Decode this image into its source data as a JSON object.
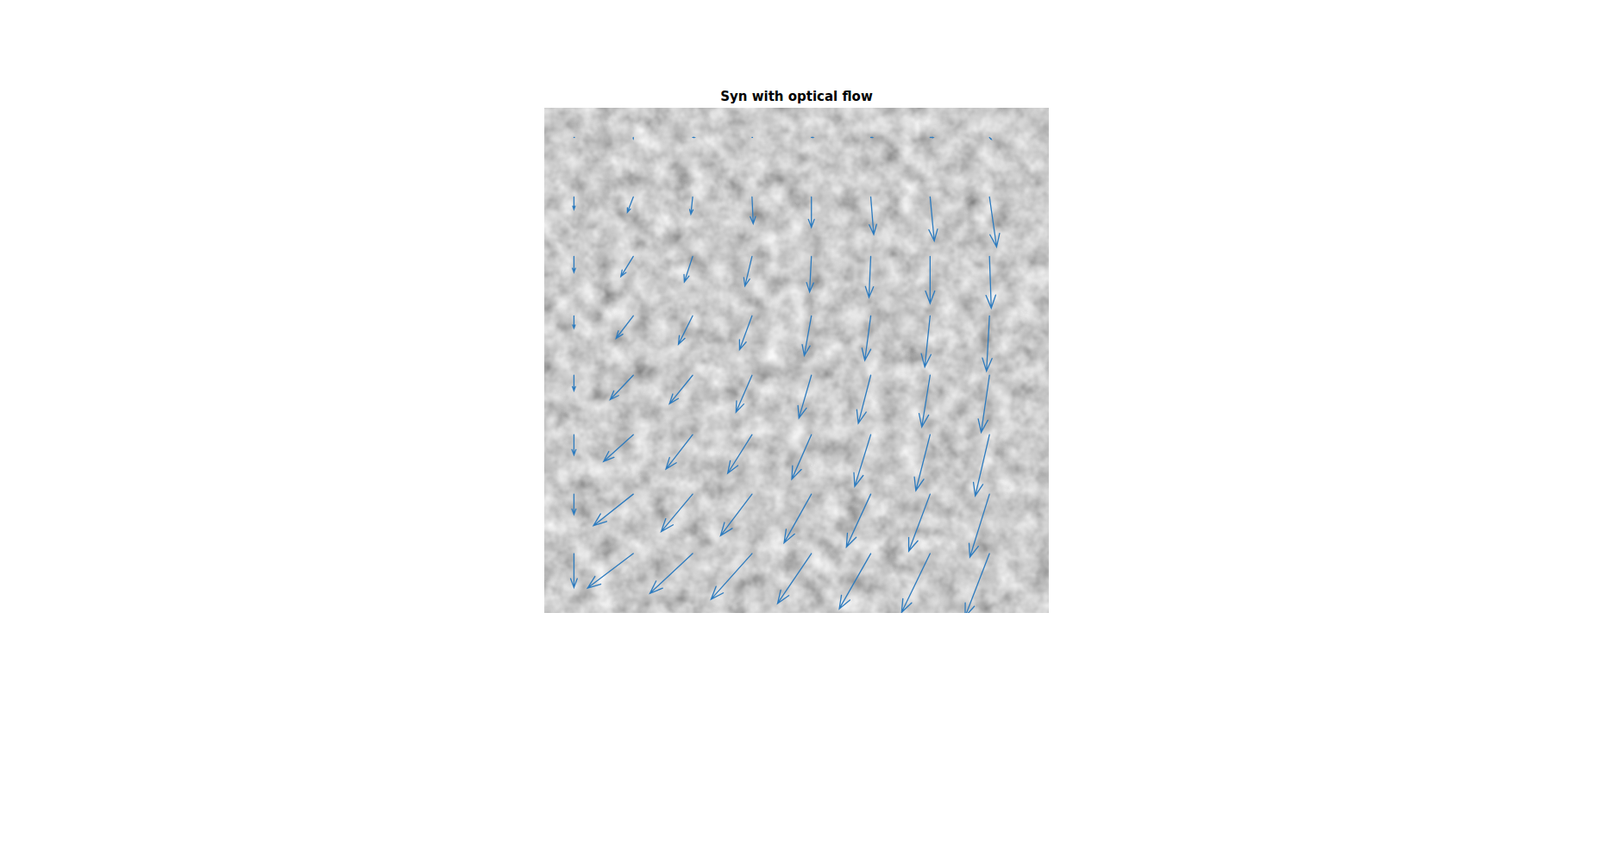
{
  "chart_data": {
    "type": "quiver",
    "title": "Syn with optical flow",
    "xlim": [
      0,
      85
    ],
    "ylim": [
      0,
      85
    ],
    "tick_labels": false,
    "color": "#2c7bbf",
    "x": [
      5,
      15,
      25,
      35,
      45,
      55,
      65,
      75,
      5,
      15,
      25,
      35,
      45,
      55,
      65,
      75,
      5,
      15,
      25,
      35,
      45,
      55,
      65,
      75,
      5,
      15,
      25,
      35,
      45,
      55,
      65,
      75,
      5,
      15,
      25,
      35,
      45,
      55,
      65,
      75,
      5,
      15,
      25,
      35,
      45,
      55,
      65,
      75,
      5,
      15,
      25,
      35,
      45,
      55,
      65,
      75,
      5,
      15,
      25,
      35,
      45,
      55,
      65,
      75
    ],
    "y": [
      5,
      5,
      5,
      5,
      5,
      5,
      5,
      5,
      15,
      15,
      15,
      15,
      15,
      15,
      15,
      15,
      25,
      25,
      25,
      25,
      25,
      25,
      25,
      25,
      35,
      35,
      35,
      35,
      35,
      35,
      35,
      35,
      45,
      45,
      45,
      45,
      45,
      45,
      45,
      45,
      55,
      55,
      55,
      55,
      55,
      55,
      55,
      55,
      65,
      65,
      65,
      65,
      65,
      65,
      65,
      65,
      75,
      75,
      75,
      75,
      75,
      75,
      75,
      75
    ],
    "u": [
      0,
      0,
      0.3,
      0,
      0.3,
      0.3,
      0.5,
      0.3,
      0,
      -1.0,
      -0.3,
      0.2,
      0,
      0.5,
      0.7,
      1.2,
      0,
      -2.1,
      -1.4,
      -1.2,
      -0.3,
      -0.3,
      0,
      0.3,
      0,
      -2.9,
      -2.4,
      -2.1,
      -1.2,
      -1.0,
      -0.9,
      -0.5,
      0,
      -3.9,
      -3.9,
      -2.7,
      -2.1,
      -2.1,
      -1.4,
      -1.4,
      0,
      -5.0,
      -4.5,
      -4.1,
      -3.3,
      -2.7,
      -2.4,
      -2.4,
      0,
      -6.7,
      -5.3,
      -5.3,
      -4.6,
      -4.1,
      -3.6,
      -3.3,
      0,
      -7.7,
      -7.2,
      -6.9,
      -5.7,
      -5.3,
      -4.8,
      -4.1
    ],
    "v": [
      0,
      0.2,
      0,
      0,
      0,
      0,
      0,
      0.3,
      2.1,
      2.6,
      2.9,
      4.5,
      5.1,
      6.3,
      7.4,
      8.4,
      2.7,
      3.4,
      4.3,
      5.0,
      6.0,
      6.9,
      7.9,
      8.7,
      2.1,
      3.8,
      4.8,
      5.7,
      6.7,
      7.5,
      8.6,
      9.3,
      2.6,
      4.1,
      4.8,
      6.2,
      7.2,
      8.1,
      8.7,
      9.6,
      3.4,
      4.5,
      5.8,
      6.5,
      7.5,
      8.7,
      9.4,
      10.3,
      3.4,
      5.3,
      6.3,
      7.0,
      8.2,
      8.9,
      9.6,
      10.6,
      5.7,
      5.8,
      6.7,
      7.7,
      8.4,
      9.3,
      9.9,
      10.6
    ]
  }
}
